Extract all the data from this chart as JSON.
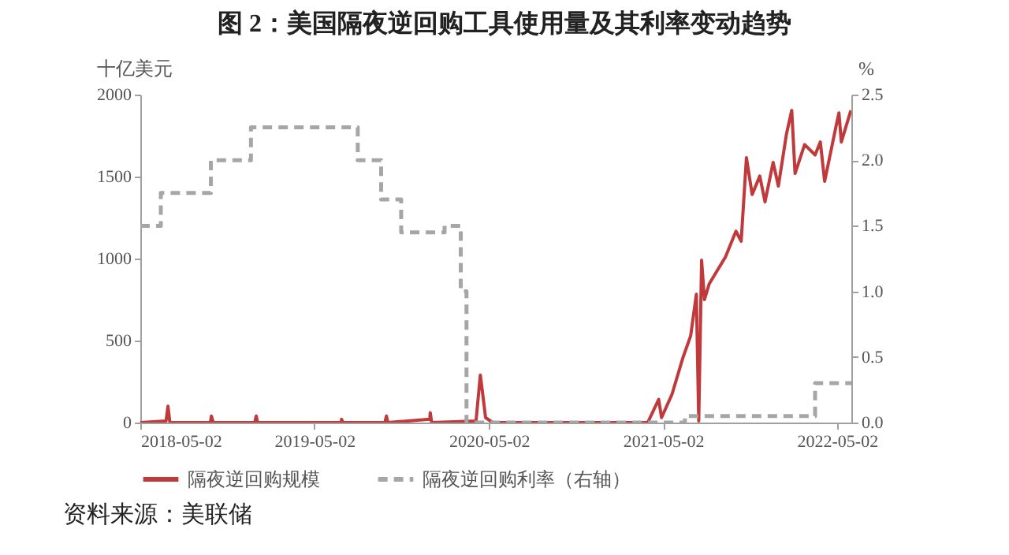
{
  "chart_data": {
    "type": "line",
    "title": "图 2：美国隔夜逆回购工具使用量及其利率变动趋势",
    "ylabel": "十亿美元",
    "y2label": "%",
    "annotations": [
      "资料来源：美联储"
    ],
    "xlim": [
      "2018-05-02",
      "2022-06-01"
    ],
    "xticks": [
      "2018-05-02",
      "2019-05-02",
      "2020-05-02",
      "2021-05-02",
      "2022-05-02"
    ],
    "ylim": [
      0,
      2000
    ],
    "yticks": [
      0,
      500,
      1000,
      1500,
      2000
    ],
    "y2lim": [
      0,
      2.5
    ],
    "y2ticks": [
      {
        "value": 0,
        "label": "0.0"
      },
      {
        "value": 0.5,
        "label": "0.5"
      },
      {
        "value": 1,
        "label": "1.0"
      },
      {
        "value": 1.5,
        "label": "1.5"
      },
      {
        "value": 2,
        "label": "2.0"
      },
      {
        "value": 2.5,
        "label": "2.5"
      }
    ],
    "grid": false,
    "legend": "bottom",
    "series": [
      {
        "name": "隔夜逆回购规模",
        "color": "#c0393b",
        "type": "line",
        "line_style": "solid",
        "x": [
          "2018-05-02",
          "2018-06-25",
          "2018-06-29",
          "2018-07-03",
          "2018-09-26",
          "2018-09-28",
          "2018-10-02",
          "2018-12-28",
          "2018-12-31",
          "2019-01-03",
          "2019-06-27",
          "2019-06-28",
          "2019-07-01",
          "2019-09-27",
          "2019-09-30",
          "2019-10-03",
          "2019-12-30",
          "2019-12-31",
          "2020-01-03",
          "2020-04-05",
          "2020-04-14",
          "2020-04-20",
          "2020-04-25",
          "2020-05-10",
          "2020-07-01",
          "2021-03-31",
          "2021-04-23",
          "2021-04-29",
          "2021-05-21",
          "2021-06-13",
          "2021-06-29",
          "2021-07-11",
          "2021-07-16",
          "2021-07-22",
          "2021-07-28",
          "2021-08-07",
          "2021-09-10",
          "2021-10-02",
          "2021-10-13",
          "2021-10-24",
          "2021-11-05",
          "2021-11-21",
          "2021-12-02",
          "2021-12-19",
          "2021-12-30",
          "2022-01-16",
          "2022-01-27",
          "2022-02-03",
          "2022-02-23",
          "2022-03-17",
          "2022-03-28",
          "2022-04-06",
          "2022-04-30",
          "2022-05-06",
          "2022-05-11",
          "2022-05-31"
        ],
        "values": [
          0,
          10,
          100,
          0,
          0,
          40,
          0,
          0,
          40,
          0,
          0,
          20,
          0,
          0,
          40,
          0,
          20,
          60,
          0,
          10,
          290,
          150,
          30,
          0,
          0,
          0,
          141,
          30,
          173,
          397,
          528,
          782,
          10,
          990,
          750,
          846,
          1010,
          1167,
          1106,
          1615,
          1391,
          1503,
          1346,
          1587,
          1442,
          1760,
          1904,
          1519,
          1695,
          1632,
          1711,
          1471,
          1808,
          1888,
          1711,
          1904
        ]
      },
      {
        "name": "隔夜逆回购利率（右轴）",
        "color": "#a6a6a6",
        "type": "step",
        "axis": "y2",
        "line_style": "dashed",
        "x": [
          "2018-05-02",
          "2018-06-14",
          "2018-09-27",
          "2018-12-20",
          "2019-08-01",
          "2019-09-19",
          "2019-10-31",
          "2020-01-30",
          "2020-03-04",
          "2020-03-16",
          "2021-06-17",
          "2022-03-17",
          "2022-06-01"
        ],
        "values": [
          1.5,
          1.75,
          2,
          2.25,
          2,
          1.7,
          1.45,
          1.5,
          1,
          0,
          0.05,
          0.3,
          0.3
        ]
      }
    ]
  }
}
